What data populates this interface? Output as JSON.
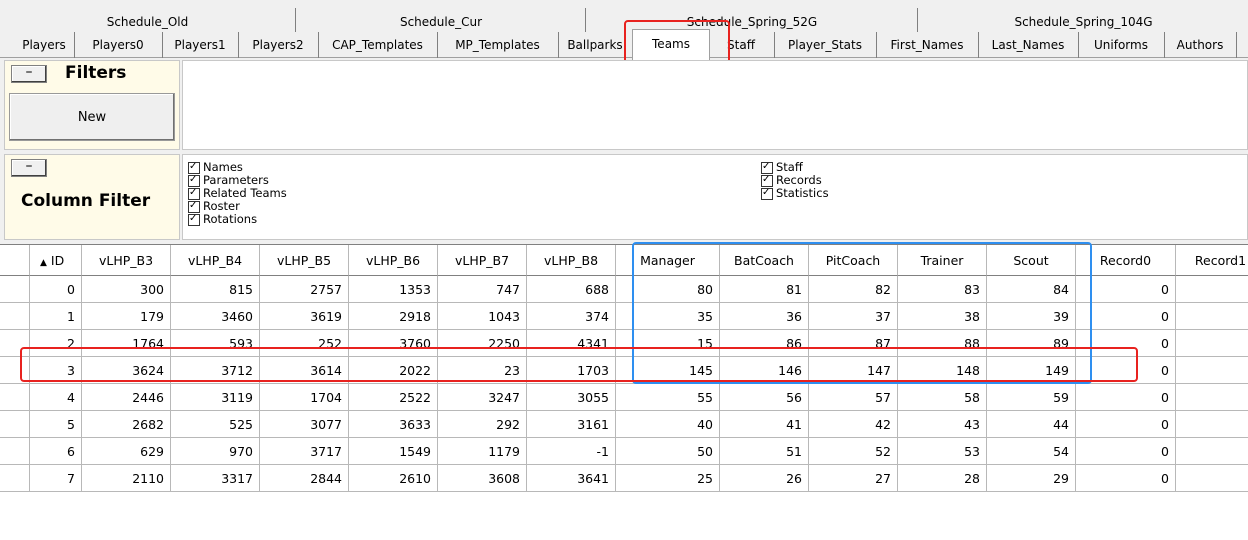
{
  "tabs_row1": [
    "Schedule_Old",
    "Schedule_Cur",
    "Schedule_Spring_52G",
    "Schedule_Spring_104G"
  ],
  "tabs_row2": [
    "Players",
    "Players0",
    "Players1",
    "Players2",
    "CAP_Templates",
    "MP_Templates",
    "Ballparks",
    "Teams",
    "Staff",
    "Player_Stats",
    "First_Names",
    "Last_Names",
    "Uniforms",
    "Authors"
  ],
  "active_tab": "Teams",
  "filters": {
    "collapse_label": "–",
    "title": "Filters",
    "new_label": "New"
  },
  "column_filter": {
    "collapse_label": "–",
    "title": "Column Filter",
    "groups_left": [
      "Names",
      "Parameters",
      "Related Teams",
      "Roster",
      "Rotations"
    ],
    "groups_right": [
      "Staff",
      "Records",
      "Statistics"
    ]
  },
  "grid": {
    "sort_indicator": "▲",
    "columns": [
      "ID",
      "vLHP_B3",
      "vLHP_B4",
      "vLHP_B5",
      "vLHP_B6",
      "vLHP_B7",
      "vLHP_B8",
      "Manager",
      "BatCoach",
      "PitCoach",
      "Trainer",
      "Scout",
      "Record0",
      "Record1"
    ],
    "rows": [
      [
        "0",
        "300",
        "815",
        "2757",
        "1353",
        "747",
        "688",
        "80",
        "81",
        "82",
        "83",
        "84",
        "0",
        ""
      ],
      [
        "1",
        "179",
        "3460",
        "3619",
        "2918",
        "1043",
        "374",
        "35",
        "36",
        "37",
        "38",
        "39",
        "0",
        ""
      ],
      [
        "2",
        "1764",
        "593",
        "252",
        "3760",
        "2250",
        "4341",
        "15",
        "86",
        "87",
        "88",
        "89",
        "0",
        ""
      ],
      [
        "3",
        "3624",
        "3712",
        "3614",
        "2022",
        "23",
        "1703",
        "145",
        "146",
        "147",
        "148",
        "149",
        "0",
        ""
      ],
      [
        "4",
        "2446",
        "3119",
        "1704",
        "2522",
        "3247",
        "3055",
        "55",
        "56",
        "57",
        "58",
        "59",
        "0",
        ""
      ],
      [
        "5",
        "2682",
        "525",
        "3077",
        "3633",
        "292",
        "3161",
        "40",
        "41",
        "42",
        "43",
        "44",
        "0",
        ""
      ],
      [
        "6",
        "629",
        "970",
        "3717",
        "1549",
        "1179",
        "-1",
        "50",
        "51",
        "52",
        "53",
        "54",
        "0",
        ""
      ],
      [
        "7",
        "2110",
        "3317",
        "2844",
        "2610",
        "3608",
        "3641",
        "25",
        "26",
        "27",
        "28",
        "29",
        "0",
        ""
      ]
    ]
  },
  "colors": {
    "highlight_red": "#e8221f",
    "highlight_blue": "#2e8ff0",
    "panel_left_bg": "#fffbe8"
  }
}
